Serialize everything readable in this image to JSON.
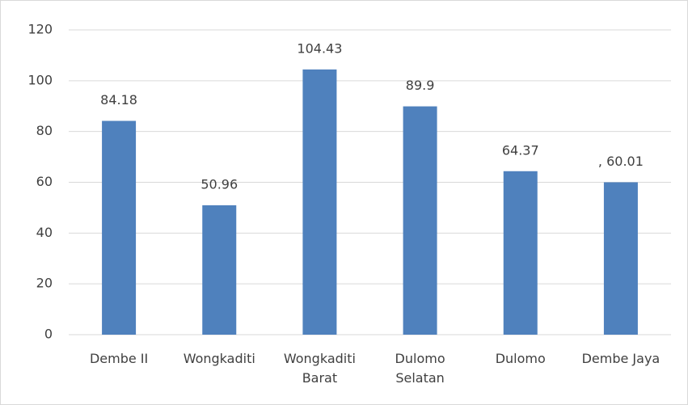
{
  "chart_data": {
    "type": "bar",
    "categories": [
      "Dembe II",
      "Wongkaditi",
      "Wongkaditi Barat",
      "Dulomo Selatan",
      "Dulomo",
      "Dembe Jaya"
    ],
    "values": [
      84.18,
      50.96,
      104.43,
      89.9,
      64.37,
      60.01
    ],
    "value_labels": [
      "84.18",
      "50.96",
      "104.43",
      "89.9",
      "64.37",
      ", 60.01"
    ],
    "color": "#4f81bd",
    "ylim": [
      0,
      120
    ],
    "yticks": [
      0,
      20,
      40,
      60,
      80,
      100,
      120
    ],
    "grid": true
  }
}
